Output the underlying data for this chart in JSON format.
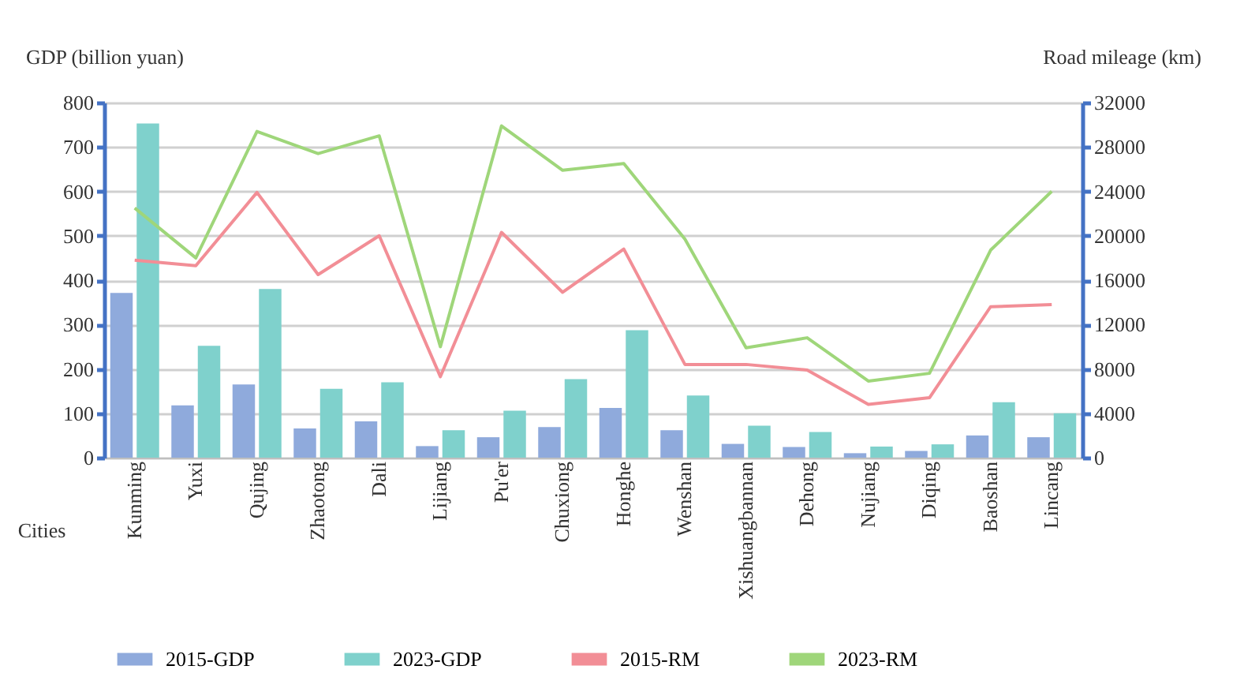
{
  "chart_data": {
    "type": "bar",
    "xlabel": "Cities",
    "ylabel": "GDP (billion yuan)",
    "y2label": "Road mileage (km)",
    "categories": [
      "Kunming",
      "Yuxi",
      "Qujing",
      "Zhaotong",
      "Dali",
      "Lijiang",
      "Pu'er",
      "Chuxiong",
      "Honghe",
      "Wenshan",
      "Xishuangbannan",
      "Dehong",
      "Nujiang",
      "Diqing",
      "Baoshan",
      "Lincang"
    ],
    "series": [
      {
        "name": "2015-GDP",
        "color": "#8faadc",
        "values": [
          371,
          118,
          165,
          66,
          82,
          26,
          46,
          69,
          112,
          62,
          31,
          24,
          10,
          15,
          50,
          46
        ]
      },
      {
        "name": "2023-GDP",
        "color": "#7fd1cc",
        "values": [
          753,
          252,
          380,
          155,
          170,
          62,
          106,
          177,
          287,
          140,
          72,
          58,
          25,
          30,
          125,
          100
        ]
      },
      {
        "name": "2015-RM",
        "type": "line",
        "axis": "y2",
        "color": "#f28e96",
        "values": [
          17800,
          17300,
          23900,
          16500,
          20000,
          7300,
          20300,
          14900,
          18800,
          8400,
          8400,
          7900,
          4800,
          5400,
          13600,
          13800
        ]
      },
      {
        "name": "2023-RM",
        "type": "line",
        "axis": "y2",
        "color": "#9fd67a",
        "values": [
          22500,
          18000,
          29400,
          27400,
          29000,
          10000,
          29900,
          25900,
          26500,
          19700,
          9900,
          10800,
          6900,
          7600,
          18700,
          24000
        ]
      }
    ],
    "ylim": [
      0,
      800
    ],
    "yticks": [
      0,
      100,
      200,
      300,
      400,
      500,
      600,
      700,
      800
    ],
    "y2lim": [
      0,
      32000
    ],
    "y2ticks": [
      0,
      4000,
      8000,
      12000,
      16000,
      20000,
      24000,
      28000,
      32000
    ],
    "grid": "y",
    "legend": "bottom",
    "marker": "none",
    "line_style": "solid"
  }
}
